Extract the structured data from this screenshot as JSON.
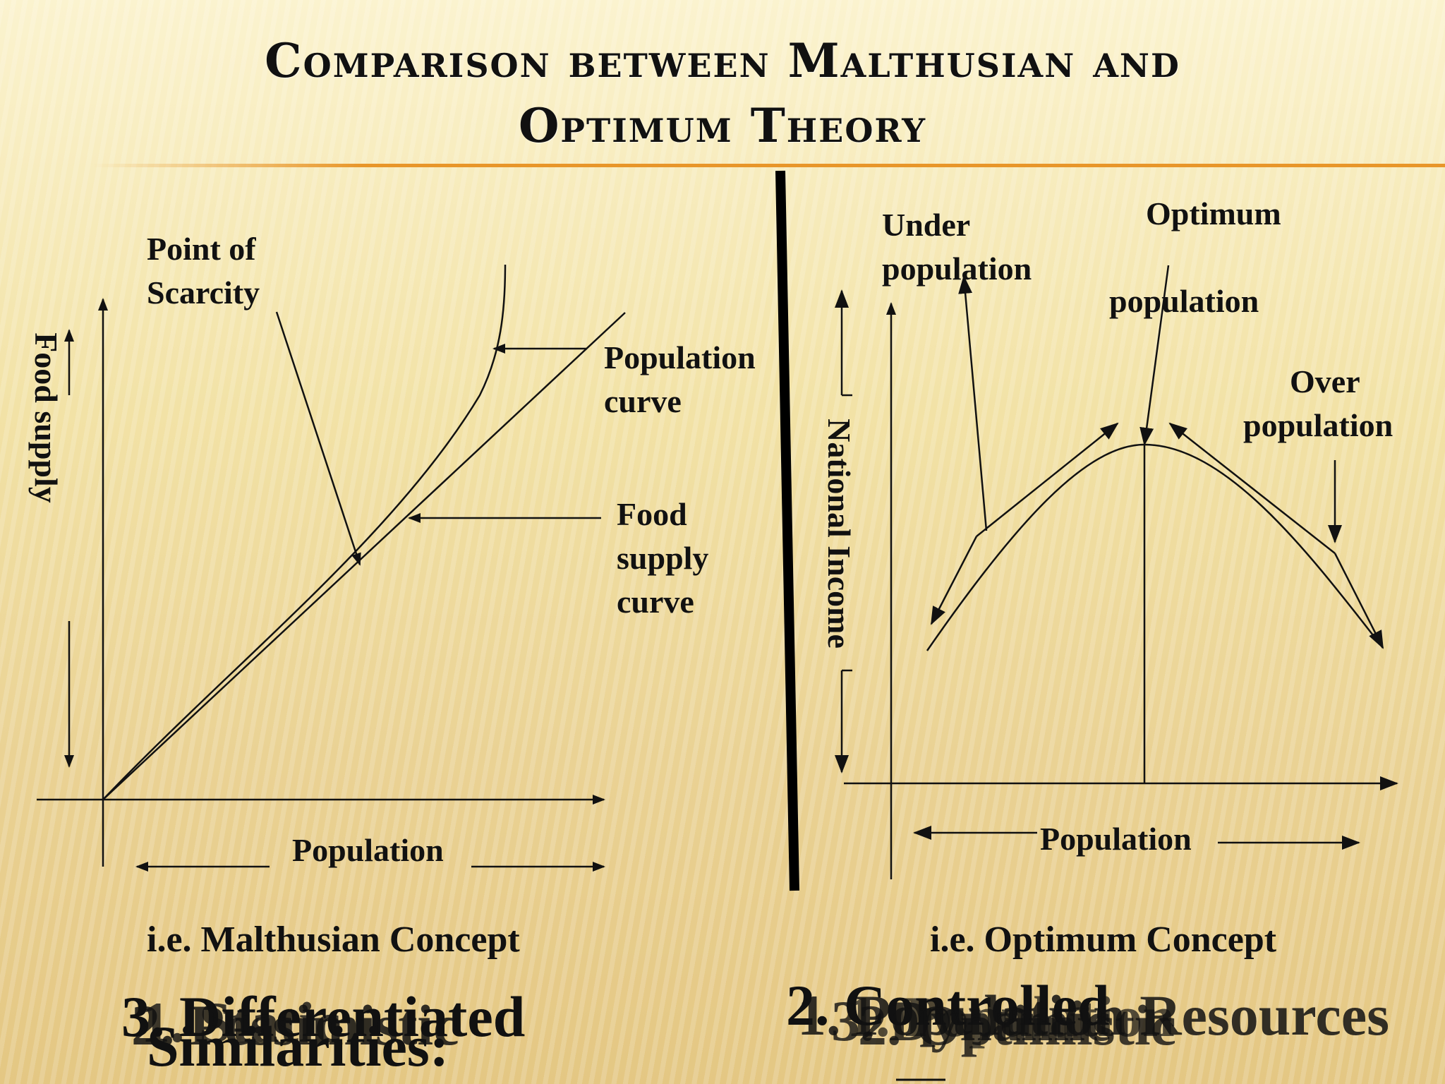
{
  "title": {
    "line1": "Comparison between Malthusian and",
    "line2": "Optimum Theory"
  },
  "left_diagram": {
    "ylabel": "Food supply",
    "xlabel": "Population",
    "annotations": {
      "point_of_scarcity": [
        "Point of",
        "Scarcity"
      ],
      "population_curve": [
        "Population",
        "curve"
      ],
      "food_supply_curve": [
        "Food",
        "supply",
        "curve"
      ]
    },
    "caption": "i.e. Malthusian Concept"
  },
  "right_diagram": {
    "ylabel": "National Income",
    "xlabel": "Population",
    "annotations": {
      "under_population": [
        "Under",
        "population"
      ],
      "optimum": "Optimum",
      "optimum_population": "population",
      "over_population": [
        "Over",
        "population"
      ]
    },
    "caption": "i.e. Optimum Concept"
  },
  "overlapping_text": {
    "left_layers": [
      "3. Differentiated",
      "2. Pessimistic",
      "1. Static",
      "Similarities:"
    ],
    "right_layers": [
      "2. Controlled",
      "1. Population Resources",
      "3. Dynamic",
      "2. Optimistic",
      "1. Population"
    ]
  },
  "colors": {
    "accent_rule": "#e8962a",
    "ink": "#111111"
  }
}
